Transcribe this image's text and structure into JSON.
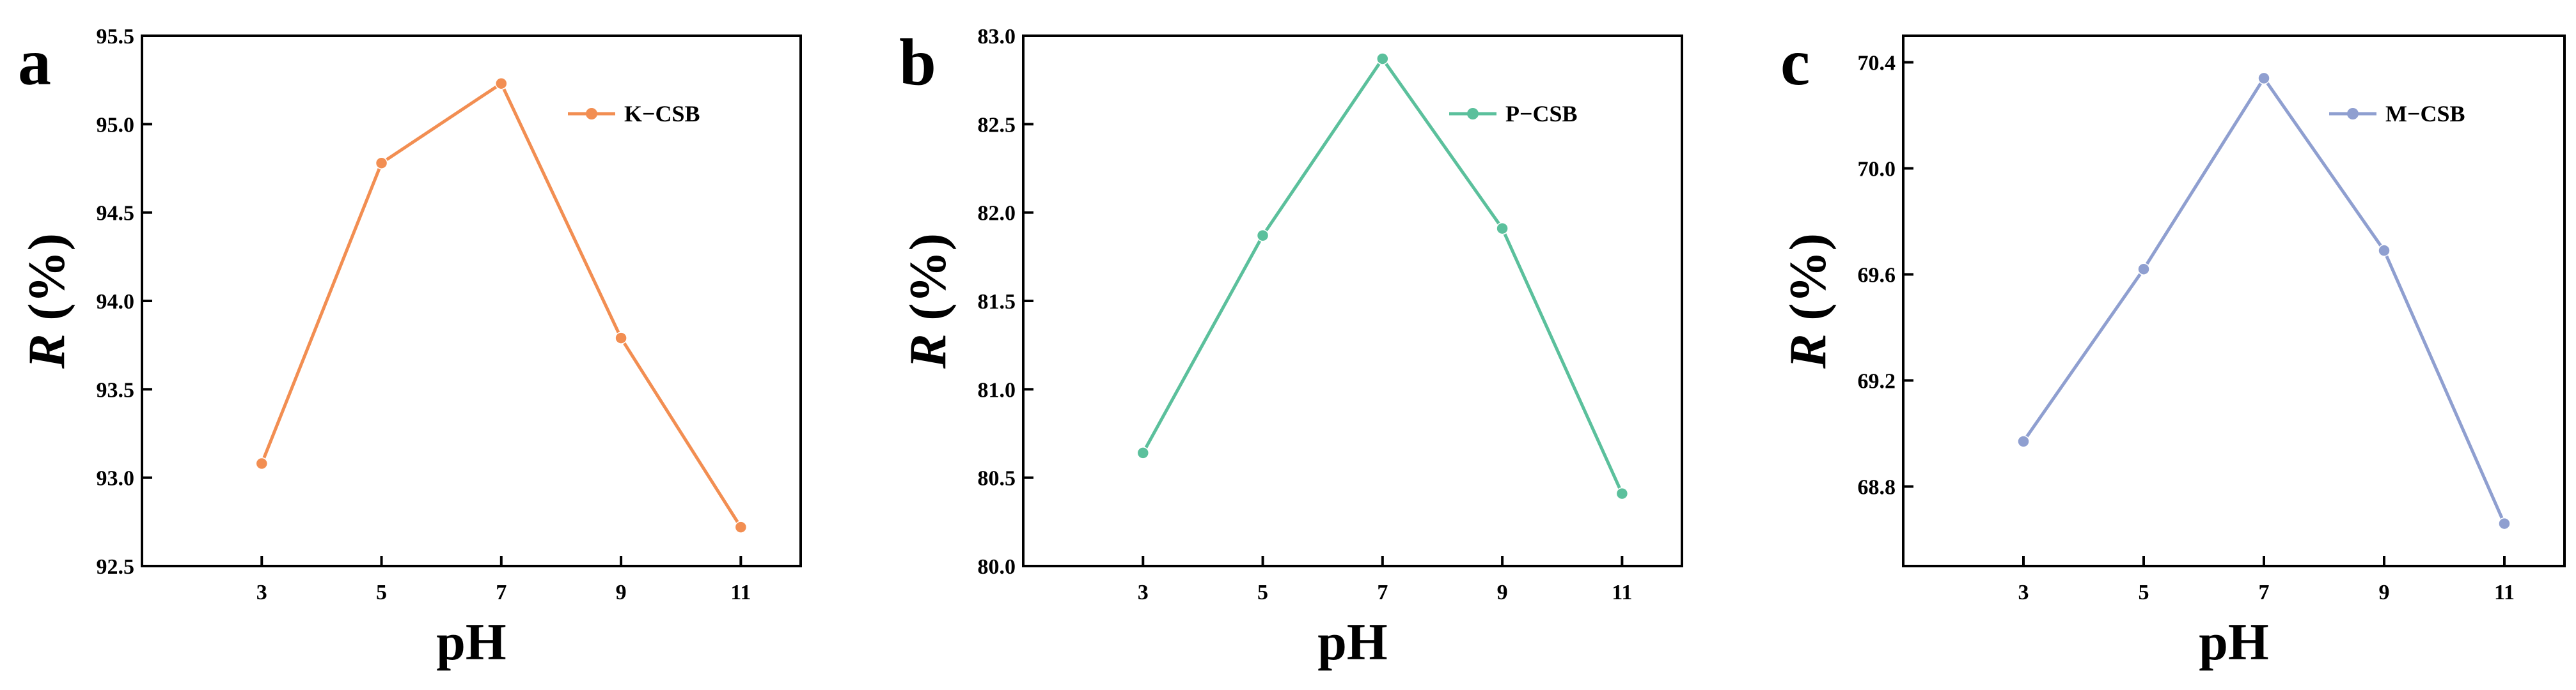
{
  "chart_data": [
    {
      "type": "line",
      "panel": "a",
      "xlabel": "pH",
      "ylabel": "R (%)",
      "ylabel_italic": "R",
      "ylabel_rest": " (%)",
      "x": [
        3,
        5,
        7,
        9,
        11
      ],
      "xticks": [
        3,
        5,
        7,
        9,
        11
      ],
      "xlim": [
        1,
        12
      ],
      "ylim": [
        92.5,
        95.5
      ],
      "yticks": [
        92.5,
        93.0,
        93.5,
        94.0,
        94.5,
        95.0,
        95.5
      ],
      "yticklabels": [
        "92.5",
        "93.0",
        "93.5",
        "94.0",
        "94.5",
        "95.0",
        "95.5"
      ],
      "grid": false,
      "legend_position": "top-right",
      "series": [
        {
          "name": "K−CSB",
          "color": "#F28E52",
          "values": [
            93.08,
            94.78,
            95.23,
            93.79,
            92.72
          ]
        }
      ]
    },
    {
      "type": "line",
      "panel": "b",
      "xlabel": "pH",
      "ylabel": "R (%)",
      "ylabel_italic": "R",
      "ylabel_rest": " (%)",
      "x": [
        3,
        5,
        7,
        9,
        11
      ],
      "xticks": [
        3,
        5,
        7,
        9,
        11
      ],
      "xlim": [
        1,
        12
      ],
      "ylim": [
        80.0,
        83.0
      ],
      "yticks": [
        80.0,
        80.5,
        81.0,
        81.5,
        82.0,
        82.5,
        83.0
      ],
      "yticklabels": [
        "80.0",
        "80.5",
        "81.0",
        "81.5",
        "82.0",
        "82.5",
        "83.0"
      ],
      "grid": false,
      "legend_position": "top-right",
      "series": [
        {
          "name": "P−CSB",
          "color": "#5BC09C",
          "values": [
            80.64,
            81.87,
            82.87,
            81.91,
            80.41
          ]
        }
      ]
    },
    {
      "type": "line",
      "panel": "c",
      "xlabel": "pH",
      "ylabel": "R (%)",
      "ylabel_italic": "R",
      "ylabel_rest": " (%)",
      "x": [
        3,
        5,
        7,
        9,
        11
      ],
      "xticks": [
        3,
        5,
        7,
        9,
        11
      ],
      "xlim": [
        1,
        12
      ],
      "ylim": [
        68.5,
        70.5
      ],
      "yticks": [
        68.8,
        69.2,
        69.6,
        70.0,
        70.4
      ],
      "yticklabels": [
        "68.8",
        "69.2",
        "69.6",
        "70.0",
        "70.4"
      ],
      "grid": false,
      "legend_position": "top-right",
      "series": [
        {
          "name": "M−CSB",
          "color": "#8F9FD0",
          "values": [
            68.97,
            69.62,
            70.34,
            69.69,
            68.66
          ]
        }
      ]
    }
  ]
}
